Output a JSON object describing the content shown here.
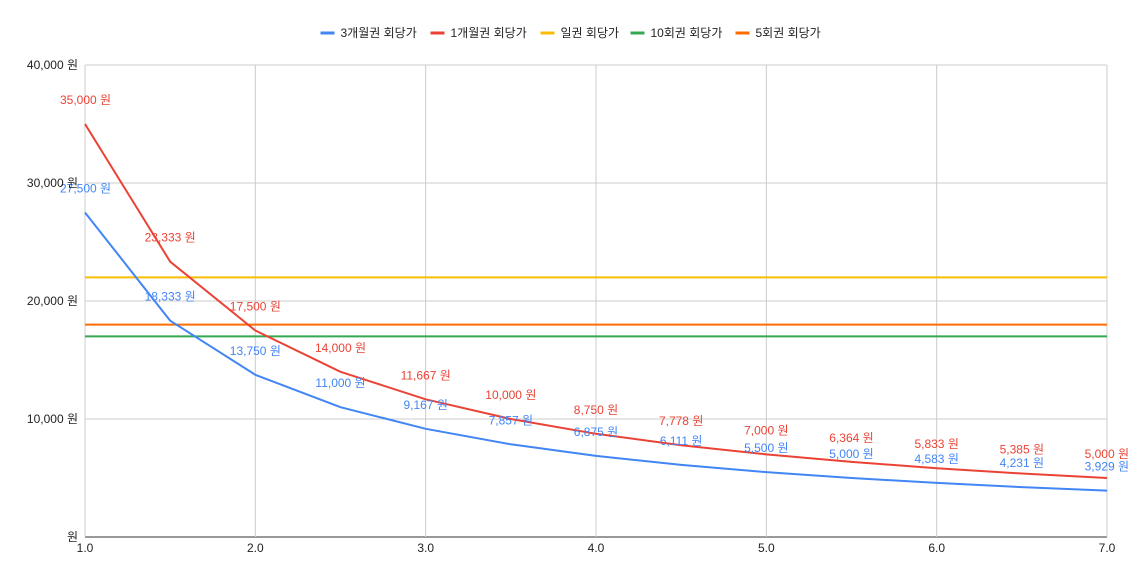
{
  "chart_data": {
    "type": "line",
    "title": "",
    "xlabel": "",
    "ylabel": "",
    "xlim": [
      1.0,
      7.0
    ],
    "ylim": [
      0,
      40000
    ],
    "x_ticks": [
      "1.0",
      "2.0",
      "3.0",
      "4.0",
      "5.0",
      "6.0",
      "7.0"
    ],
    "y_ticks": [
      "원",
      "10,000 원",
      "20,000 원",
      "30,000 원",
      "40,000 원"
    ],
    "grid": true,
    "legend_position": "top-center",
    "x": [
      1.0,
      1.5,
      2.0,
      2.5,
      3.0,
      3.5,
      4.0,
      4.5,
      5.0,
      5.5,
      6.0,
      6.5,
      7.0
    ],
    "series": [
      {
        "name": "3개월권 회당가",
        "color": "#4285f4",
        "values": [
          27500,
          18333,
          13750,
          11000,
          9167,
          7857,
          6875,
          6111,
          5500,
          5000,
          4583,
          4231,
          3929
        ],
        "labels": [
          "27,500 원",
          "18,333 원",
          "13,750 원",
          "11,000 원",
          "9,167 원",
          "7,857 원",
          "6,875 원",
          "6,111 원",
          "5,500 원",
          "5,000 원",
          "4,583 원",
          "4,231 원",
          "3,929 원"
        ]
      },
      {
        "name": "1개월권 회당가",
        "color": "#ea4335",
        "values": [
          35000,
          23333,
          17500,
          14000,
          11667,
          10000,
          8750,
          7778,
          7000,
          6364,
          5833,
          5385,
          5000
        ],
        "labels": [
          "35,000 원",
          "23,333 원",
          "17,500 원",
          "14,000 원",
          "11,667 원",
          "10,000 원",
          "8,750 원",
          "7,778 원",
          "7,000 원",
          "6,364 원",
          "5,833 원",
          "5,385 원",
          "5,000 원"
        ]
      },
      {
        "name": "일권 회당가",
        "color": "#fbbc04",
        "values": [
          22000,
          22000,
          22000,
          22000,
          22000,
          22000,
          22000,
          22000,
          22000,
          22000,
          22000,
          22000,
          22000
        ]
      },
      {
        "name": "10회권 회당가",
        "color": "#34a853",
        "values": [
          17000,
          17000,
          17000,
          17000,
          17000,
          17000,
          17000,
          17000,
          17000,
          17000,
          17000,
          17000,
          17000
        ]
      },
      {
        "name": "5회권 회당가",
        "color": "#ff6d01",
        "values": [
          18000,
          18000,
          18000,
          18000,
          18000,
          18000,
          18000,
          18000,
          18000,
          18000,
          18000,
          18000,
          18000
        ]
      }
    ]
  }
}
